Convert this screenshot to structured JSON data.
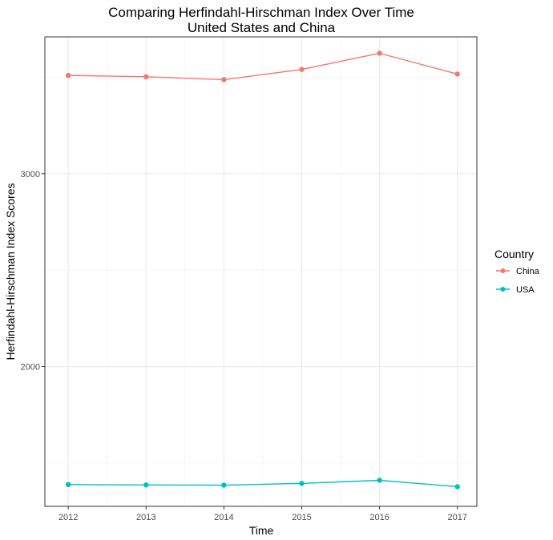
{
  "chart_data": {
    "type": "line",
    "title": "Comparing Herfindahl-Hirschman Index Over Time",
    "subtitle": "United States and China",
    "xlabel": "Time",
    "ylabel": "Herfindahl-Hirschman Index Scores",
    "x": [
      2012,
      2013,
      2014,
      2015,
      2016,
      2017
    ],
    "x_tick_labels": [
      "2012",
      "2013",
      "2014",
      "2015",
      "2016",
      "2017"
    ],
    "y_ticks": [
      2000,
      3000
    ],
    "y_tick_labels": [
      "2000",
      "3000"
    ],
    "xlim": [
      2011.7,
      2017.25
    ],
    "ylim": [
      1275,
      3710
    ],
    "grid": true,
    "legend_placement": "right",
    "legend_title": "Country",
    "series": [
      {
        "name": "China",
        "color": "#F8766D",
        "values": [
          3510,
          3503,
          3488,
          3541,
          3625,
          3517
        ]
      },
      {
        "name": "USA",
        "color": "#00BFC4",
        "values": [
          1388,
          1386,
          1385,
          1394,
          1410,
          1377
        ]
      }
    ]
  }
}
